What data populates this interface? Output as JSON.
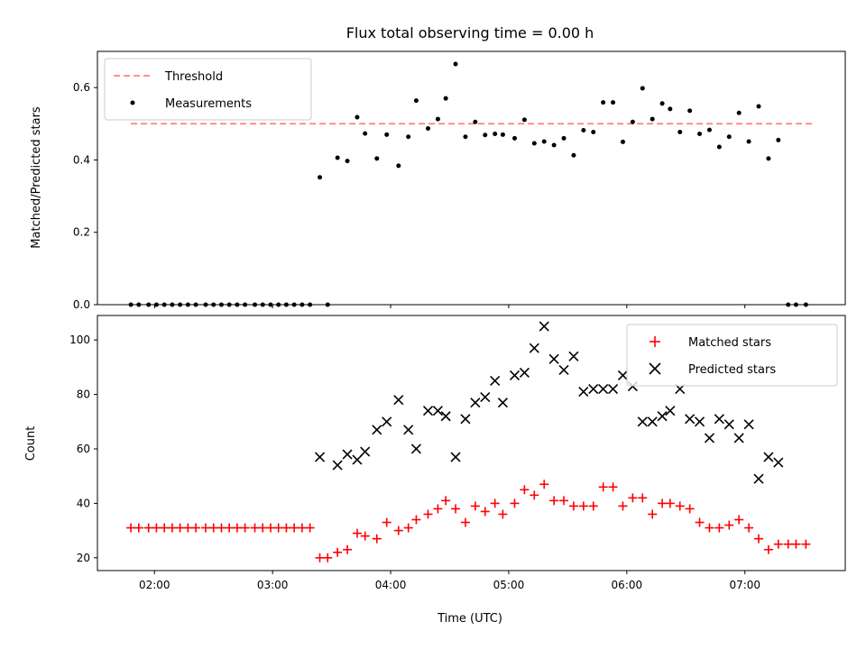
{
  "chart_data": [
    {
      "type": "scatter",
      "title": "Flux total observing time = 0.00 h",
      "ylabel": "Matched/Predicted stars",
      "xlabel": "",
      "xlim": [
        "01:31",
        "07:51"
      ],
      "ylim": [
        0,
        0.7
      ],
      "yticks": [
        0.0,
        0.2,
        0.4,
        0.6
      ],
      "ytick_labels": [
        "0.0",
        "0.2",
        "0.4",
        "0.6"
      ],
      "grid": false,
      "legend_position": "top-left",
      "threshold": {
        "name": "Threshold",
        "value": 0.5,
        "x_start": "01:48",
        "x_end": "07:35",
        "color": "#ff7f7f"
      },
      "series": [
        {
          "name": "Measurements",
          "color": "#000000",
          "marker": "dot",
          "points": [
            [
              "01:48",
              0
            ],
            [
              "01:52",
              0
            ],
            [
              "01:57",
              0
            ],
            [
              "02:01",
              0
            ],
            [
              "02:05",
              0
            ],
            [
              "02:09",
              0
            ],
            [
              "02:13",
              0
            ],
            [
              "02:17",
              0
            ],
            [
              "02:21",
              0
            ],
            [
              "02:26",
              0
            ],
            [
              "02:30",
              0
            ],
            [
              "02:34",
              0
            ],
            [
              "02:38",
              0
            ],
            [
              "02:42",
              0
            ],
            [
              "02:46",
              0
            ],
            [
              "02:51",
              0
            ],
            [
              "02:55",
              0
            ],
            [
              "02:59",
              0
            ],
            [
              "03:03",
              0
            ],
            [
              "03:07",
              0
            ],
            [
              "03:11",
              0
            ],
            [
              "03:15",
              0
            ],
            [
              "03:19",
              0
            ],
            [
              "03:28",
              0
            ],
            [
              "03:24",
              0.352
            ],
            [
              "03:33",
              0.406
            ],
            [
              "03:38",
              0.397
            ],
            [
              "03:43",
              0.518
            ],
            [
              "03:47",
              0.473
            ],
            [
              "03:53",
              0.404
            ],
            [
              "03:58",
              0.47
            ],
            [
              "04:04",
              0.384
            ],
            [
              "04:09",
              0.464
            ],
            [
              "04:13",
              0.564
            ],
            [
              "04:19",
              0.487
            ],
            [
              "04:24",
              0.513
            ],
            [
              "04:28",
              0.57
            ],
            [
              "04:33",
              0.665
            ],
            [
              "04:38",
              0.464
            ],
            [
              "04:43",
              0.505
            ],
            [
              "04:48",
              0.469
            ],
            [
              "04:53",
              0.472
            ],
            [
              "04:57",
              0.47
            ],
            [
              "05:03",
              0.46
            ],
            [
              "05:08",
              0.511
            ],
            [
              "05:13",
              0.446
            ],
            [
              "05:18",
              0.451
            ],
            [
              "05:23",
              0.441
            ],
            [
              "05:28",
              0.46
            ],
            [
              "05:33",
              0.413
            ],
            [
              "05:38",
              0.482
            ],
            [
              "05:43",
              0.477
            ],
            [
              "05:48",
              0.559
            ],
            [
              "05:53",
              0.559
            ],
            [
              "05:58",
              0.45
            ],
            [
              "06:03",
              0.505
            ],
            [
              "06:08",
              0.598
            ],
            [
              "06:13",
              0.513
            ],
            [
              "06:18",
              0.556
            ],
            [
              "06:22",
              0.541
            ],
            [
              "06:27",
              0.477
            ],
            [
              "06:32",
              0.536
            ],
            [
              "06:37",
              0.472
            ],
            [
              "06:42",
              0.483
            ],
            [
              "06:47",
              0.436
            ],
            [
              "06:52",
              0.464
            ],
            [
              "06:57",
              0.53
            ],
            [
              "07:02",
              0.451
            ],
            [
              "07:07",
              0.548
            ],
            [
              "07:12",
              0.404
            ],
            [
              "07:17",
              0.455
            ],
            [
              "07:22",
              0
            ],
            [
              "07:26",
              0
            ],
            [
              "07:31",
              0
            ]
          ]
        }
      ]
    },
    {
      "type": "scatter",
      "title": "",
      "xlabel": "Time (UTC)",
      "ylabel": "Count",
      "xlim": [
        "01:31",
        "07:51"
      ],
      "ylim": [
        15.3,
        109
      ],
      "xticks": [
        "02:00",
        "03:00",
        "04:00",
        "05:00",
        "06:00",
        "07:00"
      ],
      "yticks": [
        20,
        40,
        60,
        80,
        100
      ],
      "ytick_labels": [
        "20",
        "40",
        "60",
        "80",
        "100"
      ],
      "grid": false,
      "legend_position": "top-right",
      "series": [
        {
          "name": "Matched stars",
          "color": "#ff0000",
          "marker": "plus",
          "points": [
            [
              "01:48",
              31
            ],
            [
              "01:52",
              31
            ],
            [
              "01:57",
              31
            ],
            [
              "02:01",
              31
            ],
            [
              "02:05",
              31
            ],
            [
              "02:09",
              31
            ],
            [
              "02:13",
              31
            ],
            [
              "02:17",
              31
            ],
            [
              "02:21",
              31
            ],
            [
              "02:26",
              31
            ],
            [
              "02:30",
              31
            ],
            [
              "02:34",
              31
            ],
            [
              "02:38",
              31
            ],
            [
              "02:42",
              31
            ],
            [
              "02:46",
              31
            ],
            [
              "02:51",
              31
            ],
            [
              "02:55",
              31
            ],
            [
              "02:59",
              31
            ],
            [
              "03:03",
              31
            ],
            [
              "03:07",
              31
            ],
            [
              "03:11",
              31
            ],
            [
              "03:15",
              31
            ],
            [
              "03:19",
              31
            ],
            [
              "03:24",
              20
            ],
            [
              "03:28",
              20
            ],
            [
              "03:33",
              22
            ],
            [
              "03:38",
              23
            ],
            [
              "03:43",
              29
            ],
            [
              "03:47",
              28
            ],
            [
              "03:53",
              27
            ],
            [
              "03:58",
              33
            ],
            [
              "04:04",
              30
            ],
            [
              "04:09",
              31
            ],
            [
              "04:13",
              34
            ],
            [
              "04:19",
              36
            ],
            [
              "04:24",
              38
            ],
            [
              "04:28",
              41
            ],
            [
              "04:33",
              38
            ],
            [
              "04:38",
              33
            ],
            [
              "04:43",
              39
            ],
            [
              "04:48",
              37
            ],
            [
              "04:53",
              40
            ],
            [
              "04:57",
              36
            ],
            [
              "05:03",
              40
            ],
            [
              "05:08",
              45
            ],
            [
              "05:13",
              43
            ],
            [
              "05:18",
              47
            ],
            [
              "05:23",
              41
            ],
            [
              "05:28",
              41
            ],
            [
              "05:33",
              39
            ],
            [
              "05:38",
              39
            ],
            [
              "05:43",
              39
            ],
            [
              "05:48",
              46
            ],
            [
              "05:53",
              46
            ],
            [
              "05:58",
              39
            ],
            [
              "06:03",
              42
            ],
            [
              "06:08",
              42
            ],
            [
              "06:13",
              36
            ],
            [
              "06:18",
              40
            ],
            [
              "06:22",
              40
            ],
            [
              "06:27",
              39
            ],
            [
              "06:32",
              38
            ],
            [
              "06:37",
              33
            ],
            [
              "06:42",
              31
            ],
            [
              "06:47",
              31
            ],
            [
              "06:52",
              32
            ],
            [
              "06:57",
              34
            ],
            [
              "07:02",
              31
            ],
            [
              "07:07",
              27
            ],
            [
              "07:12",
              23
            ],
            [
              "07:17",
              25
            ],
            [
              "07:22",
              25
            ],
            [
              "07:26",
              25
            ],
            [
              "07:31",
              25
            ]
          ]
        },
        {
          "name": "Predicted stars",
          "color": "#000000",
          "marker": "x",
          "points": [
            [
              "03:24",
              57
            ],
            [
              "03:33",
              54
            ],
            [
              "03:38",
              58
            ],
            [
              "03:43",
              56
            ],
            [
              "03:47",
              59
            ],
            [
              "03:53",
              67
            ],
            [
              "03:58",
              70
            ],
            [
              "04:04",
              78
            ],
            [
              "04:09",
              67
            ],
            [
              "04:13",
              60
            ],
            [
              "04:19",
              74
            ],
            [
              "04:24",
              74
            ],
            [
              "04:28",
              72
            ],
            [
              "04:33",
              57
            ],
            [
              "04:38",
              71
            ],
            [
              "04:43",
              77
            ],
            [
              "04:48",
              79
            ],
            [
              "04:53",
              85
            ],
            [
              "04:57",
              77
            ],
            [
              "05:03",
              87
            ],
            [
              "05:08",
              88
            ],
            [
              "05:13",
              97
            ],
            [
              "05:18",
              105
            ],
            [
              "05:23",
              93
            ],
            [
              "05:28",
              89
            ],
            [
              "05:33",
              94
            ],
            [
              "05:38",
              81
            ],
            [
              "05:43",
              82
            ],
            [
              "05:48",
              82
            ],
            [
              "05:53",
              82
            ],
            [
              "05:58",
              87
            ],
            [
              "06:03",
              83
            ],
            [
              "06:08",
              70
            ],
            [
              "06:13",
              70
            ],
            [
              "06:18",
              72
            ],
            [
              "06:22",
              74
            ],
            [
              "06:27",
              82
            ],
            [
              "06:32",
              71
            ],
            [
              "06:37",
              70
            ],
            [
              "06:42",
              64
            ],
            [
              "06:47",
              71
            ],
            [
              "06:52",
              69
            ],
            [
              "06:57",
              64
            ],
            [
              "07:02",
              69
            ],
            [
              "07:07",
              49
            ],
            [
              "07:12",
              57
            ],
            [
              "07:17",
              55
            ]
          ]
        }
      ]
    }
  ]
}
